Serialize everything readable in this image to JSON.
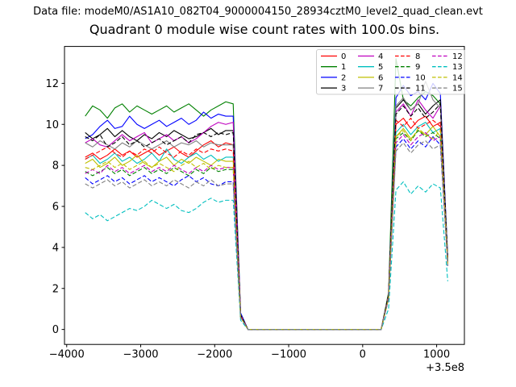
{
  "header": {
    "data_file_label": "Data file: modeM0/AS1A10_082T04_9000004150_28934cztM0_level2_quad_clean.evt"
  },
  "chart_data": {
    "type": "line",
    "title": "Quadrant 0 module wise count rates with 100.0s bins.",
    "xlabel": "",
    "ylabel": "",
    "x_axis_offset_label": "+3.5e8",
    "xlim": [
      -4030,
      1375
    ],
    "ylim": [
      -0.73,
      13.8
    ],
    "x_ticks": [
      -4000,
      -3000,
      -2000,
      -1000,
      0,
      1000
    ],
    "y_ticks": [
      0,
      2,
      4,
      6,
      8,
      10,
      12
    ],
    "grid": false,
    "legend_position": "upper right",
    "legend_columns": 4,
    "x": [
      -3750,
      -3650,
      -3550,
      -3450,
      -3350,
      -3250,
      -3150,
      -3050,
      -2950,
      -2850,
      -2750,
      -2650,
      -2550,
      -2450,
      -2350,
      -2250,
      -2150,
      -2050,
      -1950,
      -1850,
      -1750,
      -1650,
      -1550,
      -1450,
      -1350,
      -1250,
      -1150,
      -1050,
      -950,
      -850,
      -750,
      -650,
      -550,
      -450,
      -350,
      -250,
      -150,
      -50,
      50,
      150,
      250,
      350,
      450,
      550,
      650,
      750,
      850,
      950,
      1050,
      1150
    ],
    "series": [
      {
        "name": "0",
        "color": "#ff0000",
        "dash": false,
        "values": [
          8.4,
          8.6,
          8.3,
          8.5,
          8.8,
          8.5,
          8.7,
          8.4,
          8.6,
          8.8,
          8.5,
          8.7,
          8.9,
          8.6,
          8.4,
          8.7,
          9.0,
          9.2,
          8.9,
          9.1,
          9.0,
          0.7,
          0,
          0,
          0,
          0,
          0,
          0,
          0,
          0,
          0,
          0,
          0,
          0,
          0,
          0,
          0,
          0,
          0,
          0,
          0,
          1.6,
          10.0,
          10.3,
          9.8,
          10.2,
          10.4,
          9.9,
          10.1,
          3.4
        ]
      },
      {
        "name": "1",
        "color": "#008000",
        "dash": false,
        "values": [
          10.4,
          10.9,
          10.7,
          10.3,
          10.8,
          11.0,
          10.6,
          10.9,
          10.7,
          10.5,
          10.7,
          10.9,
          10.6,
          10.8,
          11.0,
          10.7,
          10.4,
          10.7,
          10.9,
          11.1,
          11.0,
          0.8,
          0,
          0,
          0,
          0,
          0,
          0,
          0,
          0,
          0,
          0,
          0,
          0,
          0,
          0,
          0,
          0,
          0,
          0,
          0,
          1.8,
          13.2,
          11.2,
          10.9,
          11.3,
          11.6,
          11.4,
          11.0,
          3.5
        ]
      },
      {
        "name": "2",
        "color": "#0000ff",
        "dash": false,
        "values": [
          9.3,
          9.5,
          9.9,
          10.2,
          9.8,
          9.9,
          10.4,
          10.0,
          9.8,
          10.0,
          10.2,
          9.9,
          10.1,
          10.3,
          10.0,
          10.2,
          10.6,
          10.3,
          10.5,
          10.4,
          10.4,
          0.8,
          0,
          0,
          0,
          0,
          0,
          0,
          0,
          0,
          0,
          0,
          0,
          0,
          0,
          0,
          0,
          0,
          0,
          0,
          0,
          1.7,
          11.3,
          11.9,
          11.4,
          11.6,
          11.2,
          12.0,
          11.5,
          3.5
        ]
      },
      {
        "name": "3",
        "color": "#000000",
        "dash": false,
        "values": [
          9.6,
          9.3,
          9.5,
          9.8,
          9.4,
          9.7,
          9.4,
          9.2,
          9.5,
          9.3,
          9.6,
          9.4,
          9.7,
          9.5,
          9.3,
          9.4,
          9.6,
          9.8,
          9.5,
          9.7,
          9.7,
          0.7,
          0,
          0,
          0,
          0,
          0,
          0,
          0,
          0,
          0,
          0,
          0,
          0,
          0,
          0,
          0,
          0,
          0,
          0,
          0,
          1.7,
          10.8,
          11.2,
          10.7,
          11.0,
          10.5,
          10.9,
          11.2,
          3.4
        ]
      },
      {
        "name": "4",
        "color": "#bf00bf",
        "dash": false,
        "values": [
          9.1,
          9.3,
          9.0,
          8.9,
          9.2,
          9.5,
          9.2,
          9.4,
          9.6,
          9.1,
          9.3,
          9.5,
          9.2,
          9.4,
          9.1,
          9.3,
          9.6,
          9.9,
          10.1,
          10.0,
          10.1,
          0.7,
          0,
          0,
          0,
          0,
          0,
          0,
          0,
          0,
          0,
          0,
          0,
          0,
          0,
          0,
          0,
          0,
          0,
          0,
          0,
          1.7,
          10.6,
          11.0,
          10.4,
          11.2,
          10.7,
          10.3,
          10.9,
          3.4
        ]
      },
      {
        "name": "5",
        "color": "#00bfbf",
        "dash": false,
        "values": [
          8.3,
          8.5,
          8.1,
          8.3,
          8.6,
          8.2,
          8.4,
          8.1,
          8.3,
          8.6,
          8.2,
          8.8,
          8.3,
          8.1,
          8.4,
          8.6,
          8.3,
          8.5,
          8.2,
          8.4,
          8.4,
          0.6,
          0,
          0,
          0,
          0,
          0,
          0,
          0,
          0,
          0,
          0,
          0,
          0,
          0,
          0,
          0,
          0,
          0,
          0,
          0,
          1.6,
          9.6,
          10.0,
          9.5,
          9.9,
          10.1,
          9.6,
          9.8,
          3.3
        ]
      },
      {
        "name": "6",
        "color": "#bfbf00",
        "dash": false,
        "values": [
          8.1,
          8.3,
          7.9,
          8.1,
          8.4,
          8.0,
          8.2,
          8.5,
          8.1,
          7.9,
          8.2,
          8.4,
          8.0,
          8.3,
          8.1,
          8.4,
          8.2,
          8.0,
          8.3,
          8.2,
          8.2,
          0.6,
          0,
          0,
          0,
          0,
          0,
          0,
          0,
          0,
          0,
          0,
          0,
          0,
          0,
          0,
          0,
          0,
          0,
          0,
          0,
          1.6,
          9.4,
          9.8,
          9.3,
          9.7,
          9.5,
          9.9,
          9.4,
          3.3
        ]
      },
      {
        "name": "7",
        "color": "#808080",
        "dash": false,
        "values": [
          9.1,
          8.9,
          9.2,
          9.0,
          8.8,
          9.1,
          8.9,
          9.2,
          9.0,
          8.8,
          9.0,
          9.2,
          8.9,
          9.1,
          9.0,
          9.2,
          8.9,
          9.1,
          9.0,
          9.0,
          9.0,
          0.7,
          0,
          0,
          0,
          0,
          0,
          0,
          0,
          0,
          0,
          0,
          0,
          0,
          0,
          0,
          0,
          0,
          0,
          0,
          0,
          1.7,
          10.9,
          11.3,
          10.7,
          11.0,
          12.1,
          11.2,
          10.8,
          3.4
        ]
      },
      {
        "name": "8",
        "color": "#ff0000",
        "dash": true,
        "values": [
          8.3,
          8.5,
          8.7,
          8.9,
          8.6,
          8.4,
          8.7,
          8.5,
          8.8,
          8.6,
          8.9,
          8.6,
          8.4,
          8.7,
          8.5,
          8.8,
          8.6,
          8.8,
          8.7,
          8.8,
          8.7,
          0.7,
          0,
          0,
          0,
          0,
          0,
          0,
          0,
          0,
          0,
          0,
          0,
          0,
          0,
          0,
          0,
          0,
          0,
          0,
          0,
          1.6,
          10.2,
          9.9,
          10.3,
          9.8,
          10.0,
          10.2,
          9.9,
          3.3
        ]
      },
      {
        "name": "9",
        "color": "#008000",
        "dash": true,
        "values": [
          7.7,
          7.5,
          7.7,
          7.9,
          7.6,
          7.8,
          7.5,
          7.7,
          7.9,
          7.6,
          7.8,
          7.6,
          7.9,
          7.7,
          7.5,
          7.8,
          7.6,
          7.9,
          7.7,
          7.8,
          7.8,
          0.6,
          0,
          0,
          0,
          0,
          0,
          0,
          0,
          0,
          0,
          0,
          0,
          0,
          0,
          0,
          0,
          0,
          0,
          0,
          0,
          1.5,
          9.3,
          9.6,
          9.2,
          9.7,
          9.4,
          9.6,
          9.3,
          3.2
        ]
      },
      {
        "name": "10",
        "color": "#0000ff",
        "dash": true,
        "values": [
          7.4,
          7.1,
          7.3,
          7.5,
          7.2,
          7.4,
          7.1,
          7.3,
          7.5,
          7.2,
          7.4,
          7.2,
          7.0,
          7.3,
          7.5,
          7.2,
          7.4,
          7.1,
          7.0,
          7.2,
          7.2,
          0.6,
          0,
          0,
          0,
          0,
          0,
          0,
          0,
          0,
          0,
          0,
          0,
          0,
          0,
          0,
          0,
          0,
          0,
          0,
          0,
          1.5,
          8.9,
          9.3,
          8.8,
          9.2,
          8.9,
          9.4,
          9.0,
          3.1
        ]
      },
      {
        "name": "11",
        "color": "#000000",
        "dash": true,
        "values": [
          9.4,
          9.2,
          9.5,
          8.9,
          9.1,
          9.4,
          9.0,
          9.2,
          8.9,
          9.1,
          9.3,
          9.0,
          9.2,
          9.4,
          9.1,
          9.5,
          9.6,
          9.4,
          9.6,
          9.5,
          9.6,
          0.7,
          0,
          0,
          0,
          0,
          0,
          0,
          0,
          0,
          0,
          0,
          0,
          0,
          0,
          0,
          0,
          0,
          0,
          0,
          0,
          1.7,
          10.5,
          10.9,
          10.4,
          10.8,
          10.3,
          10.6,
          11.0,
          3.4
        ]
      },
      {
        "name": "12",
        "color": "#bf00bf",
        "dash": true,
        "values": [
          7.6,
          7.8,
          7.6,
          8.0,
          7.7,
          7.9,
          7.6,
          7.8,
          8.0,
          7.7,
          7.9,
          7.7,
          8.0,
          7.8,
          7.6,
          7.9,
          7.7,
          8.0,
          7.8,
          7.9,
          7.9,
          0.6,
          0,
          0,
          0,
          0,
          0,
          0,
          0,
          0,
          0,
          0,
          0,
          0,
          0,
          0,
          0,
          0,
          0,
          0,
          0,
          1.5,
          9.1,
          9.5,
          9.0,
          9.4,
          9.6,
          9.2,
          9.4,
          3.2
        ]
      },
      {
        "name": "13",
        "color": "#00bfbf",
        "dash": true,
        "values": [
          5.7,
          5.4,
          5.6,
          5.3,
          5.5,
          5.7,
          5.9,
          5.8,
          6.0,
          6.3,
          6.1,
          5.9,
          6.1,
          5.8,
          5.7,
          5.9,
          6.2,
          6.4,
          6.2,
          6.3,
          6.3,
          0.45,
          0,
          0,
          0,
          0,
          0,
          0,
          0,
          0,
          0,
          0,
          0,
          0,
          0,
          0,
          0,
          0,
          0,
          0,
          0,
          1.0,
          6.8,
          7.2,
          6.6,
          7.0,
          6.7,
          7.1,
          6.9,
          2.35
        ]
      },
      {
        "name": "14",
        "color": "#bfbf00",
        "dash": true,
        "values": [
          7.9,
          7.8,
          8.0,
          8.2,
          7.9,
          8.1,
          7.8,
          8.0,
          8.2,
          7.9,
          8.1,
          7.9,
          7.7,
          8.0,
          8.2,
          7.9,
          8.1,
          7.8,
          8.0,
          7.9,
          7.9,
          0.6,
          0,
          0,
          0,
          0,
          0,
          0,
          0,
          0,
          0,
          0,
          0,
          0,
          0,
          0,
          0,
          0,
          0,
          0,
          0,
          1.5,
          9.4,
          9.7,
          9.2,
          9.8,
          9.5,
          9.3,
          9.7,
          3.2
        ]
      },
      {
        "name": "15",
        "color": "#808080",
        "dash": true,
        "values": [
          7.1,
          6.9,
          7.1,
          7.3,
          7.0,
          7.2,
          6.9,
          7.1,
          7.3,
          7.0,
          7.2,
          7.0,
          7.3,
          7.1,
          6.9,
          7.2,
          7.0,
          7.3,
          7.0,
          7.1,
          7.1,
          0.6,
          0,
          0,
          0,
          0,
          0,
          0,
          0,
          0,
          0,
          0,
          0,
          0,
          0,
          0,
          0,
          0,
          0,
          0,
          0,
          1.5,
          8.7,
          9.1,
          8.6,
          9.0,
          9.2,
          8.8,
          9.0,
          3.1
        ]
      }
    ],
    "colors": {
      "axis": "#000000",
      "legend_border": "#cccccc",
      "background": "#ffffff"
    }
  }
}
